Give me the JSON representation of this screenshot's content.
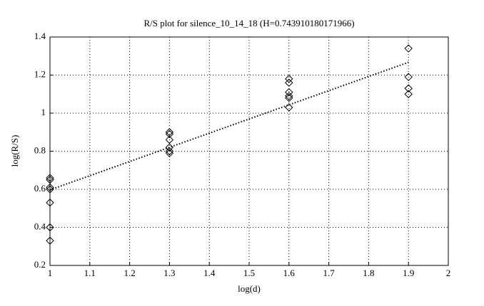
{
  "chart_data": {
    "type": "scatter",
    "title": "R/S plot for silence_10_14_18 (H=0.743910180171966)",
    "x_label": "log(d)",
    "y_label": "log(R/S)",
    "x": [
      1,
      1,
      1,
      1,
      1,
      1,
      1,
      1.3,
      1.3,
      1.3,
      1.3,
      1.3,
      1.3,
      1.6,
      1.6,
      1.6,
      1.6,
      1.6,
      1.6,
      1.9,
      1.9,
      1.9,
      1.9
    ],
    "values": [
      0.66,
      0.65,
      0.61,
      0.6,
      0.53,
      0.4,
      0.33,
      0.9,
      0.89,
      0.86,
      0.82,
      0.8,
      0.79,
      1.18,
      1.16,
      1.11,
      1.09,
      1.08,
      1.03,
      1.34,
      1.19,
      1.13,
      1.1
    ],
    "color": "#000000",
    "fit_line": {
      "x": [
        1,
        1.9
      ],
      "values": [
        0.597,
        1.267
      ]
    },
    "xlim": [
      1,
      2
    ],
    "xticks": [
      1,
      1.1,
      1.2,
      1.3,
      1.4,
      1.5,
      1.6,
      1.7,
      1.8,
      1.9,
      2
    ],
    "ylim": [
      0.2,
      1.4
    ],
    "yticks": [
      0.2,
      0.4,
      0.6,
      0.8,
      1,
      1.2,
      1.4
    ],
    "grid": true
  }
}
